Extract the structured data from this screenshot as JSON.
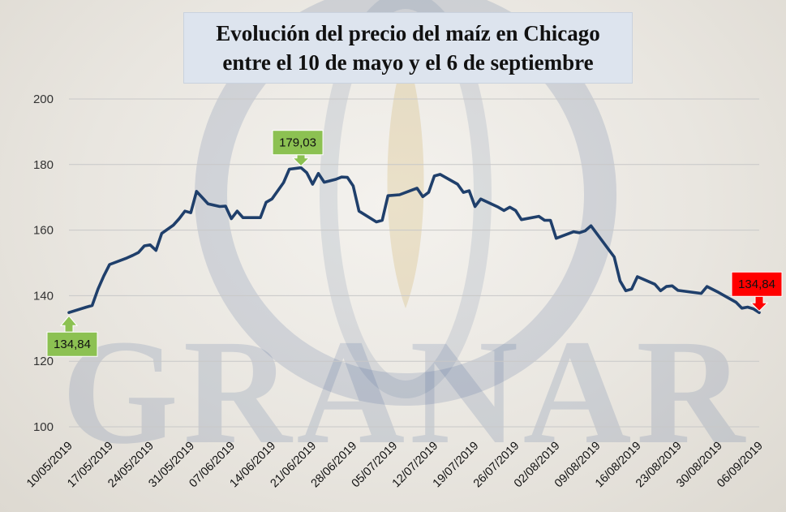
{
  "watermark": {
    "brand_text": "GRANAR",
    "color": "#3b5a8c"
  },
  "chart_data": {
    "type": "line",
    "title_lines": [
      "Evolución del precio del maíz en Chicago",
      "entre el 10 de mayo y el 6 de septiembre"
    ],
    "xlabel": "",
    "ylabel": "",
    "ylim": [
      100,
      200
    ],
    "y_ticks": [
      "100",
      "120",
      "140",
      "160",
      "180",
      "200"
    ],
    "x_tick_labels": [
      "10/05/2019",
      "17/05/2019",
      "24/05/2019",
      "31/05/2019",
      "07/06/2019",
      "14/06/2019",
      "21/06/2019",
      "28/06/2019",
      "05/07/2019",
      "12/07/2019",
      "19/07/2019",
      "26/07/2019",
      "02/08/2019",
      "09/08/2019",
      "16/08/2019",
      "23/08/2019",
      "30/08/2019",
      "06/09/2019"
    ],
    "grid": true,
    "line_color": "#1f3f6b",
    "points": [
      [
        "10/05/2019",
        134.84
      ],
      [
        "13/05/2019",
        136.5
      ],
      [
        "14/05/2019",
        137.0
      ],
      [
        "15/05/2019",
        142.0
      ],
      [
        "16/05/2019",
        146.0
      ],
      [
        "17/05/2019",
        149.5
      ],
      [
        "20/05/2019",
        151.5
      ],
      [
        "21/05/2019",
        152.3
      ],
      [
        "22/05/2019",
        153.2
      ],
      [
        "23/05/2019",
        155.2
      ],
      [
        "24/05/2019",
        155.5
      ],
      [
        "25/05/2019",
        153.8
      ],
      [
        "26/05/2019",
        159.0
      ],
      [
        "28/05/2019",
        161.5
      ],
      [
        "29/05/2019",
        163.5
      ],
      [
        "30/05/2019",
        165.8
      ],
      [
        "31/05/2019",
        165.3
      ],
      [
        "01/06/2019",
        171.8
      ],
      [
        "03/06/2019",
        168.0
      ],
      [
        "05/06/2019",
        167.2
      ],
      [
        "06/06/2019",
        167.3
      ],
      [
        "07/06/2019",
        163.5
      ],
      [
        "08/06/2019",
        165.8
      ],
      [
        "09/06/2019",
        163.8
      ],
      [
        "12/06/2019",
        163.8
      ],
      [
        "13/06/2019",
        168.5
      ],
      [
        "14/06/2019",
        169.5
      ],
      [
        "16/06/2019",
        174.5
      ],
      [
        "17/06/2019",
        178.6
      ],
      [
        "19/06/2019",
        179.03
      ],
      [
        "20/06/2019",
        177.5
      ],
      [
        "21/06/2019",
        174.0
      ],
      [
        "22/06/2019",
        177.3
      ],
      [
        "23/06/2019",
        174.6
      ],
      [
        "25/06/2019",
        175.5
      ],
      [
        "26/06/2019",
        176.2
      ],
      [
        "27/06/2019",
        176.1
      ],
      [
        "28/06/2019",
        173.5
      ],
      [
        "29/06/2019",
        165.8
      ],
      [
        "02/07/2019",
        162.5
      ],
      [
        "03/07/2019",
        163.0
      ],
      [
        "04/07/2019",
        170.5
      ],
      [
        "06/07/2019",
        170.8
      ],
      [
        "09/07/2019",
        172.8
      ],
      [
        "10/07/2019",
        170.2
      ],
      [
        "11/07/2019",
        171.5
      ],
      [
        "12/07/2019",
        176.5
      ],
      [
        "13/07/2019",
        177.0
      ],
      [
        "16/07/2019",
        174.0
      ],
      [
        "17/07/2019",
        171.5
      ],
      [
        "18/07/2019",
        172.0
      ],
      [
        "19/07/2019",
        167.2
      ],
      [
        "20/07/2019",
        169.5
      ],
      [
        "23/07/2019",
        167.0
      ],
      [
        "24/07/2019",
        166.0
      ],
      [
        "25/07/2019",
        167.0
      ],
      [
        "26/07/2019",
        166.0
      ],
      [
        "27/07/2019",
        163.2
      ],
      [
        "30/07/2019",
        164.2
      ],
      [
        "31/07/2019",
        163.0
      ],
      [
        "01/08/2019",
        163.0
      ],
      [
        "02/08/2019",
        157.5
      ],
      [
        "05/08/2019",
        159.5
      ],
      [
        "06/08/2019",
        159.2
      ],
      [
        "07/08/2019",
        159.8
      ],
      [
        "08/08/2019",
        161.3
      ],
      [
        "12/08/2019",
        151.8
      ],
      [
        "13/08/2019",
        144.5
      ],
      [
        "14/08/2019",
        141.5
      ],
      [
        "15/08/2019",
        142.0
      ],
      [
        "16/08/2019",
        145.8
      ],
      [
        "19/08/2019",
        143.5
      ],
      [
        "20/08/2019",
        141.5
      ],
      [
        "21/08/2019",
        142.8
      ],
      [
        "22/08/2019",
        143.0
      ],
      [
        "23/08/2019",
        141.6
      ],
      [
        "27/08/2019",
        140.7
      ],
      [
        "28/08/2019",
        142.8
      ],
      [
        "30/08/2019",
        141.0
      ],
      [
        "02/09/2019",
        138.0
      ],
      [
        "03/09/2019",
        136.2
      ],
      [
        "04/09/2019",
        136.5
      ],
      [
        "05/09/2019",
        136.0
      ],
      [
        "06/09/2019",
        134.84
      ]
    ],
    "annotations": [
      {
        "label": "134,84",
        "date": "10/05/2019",
        "value": 134.84,
        "color": "#8cc152",
        "pointer": "up"
      },
      {
        "label": "179,03",
        "date": "19/06/2019",
        "value": 179.03,
        "color": "#8cc152",
        "pointer": "down"
      },
      {
        "label": "134,84",
        "date": "06/09/2019",
        "value": 134.84,
        "color": "#ff0000",
        "pointer": "down"
      }
    ]
  }
}
